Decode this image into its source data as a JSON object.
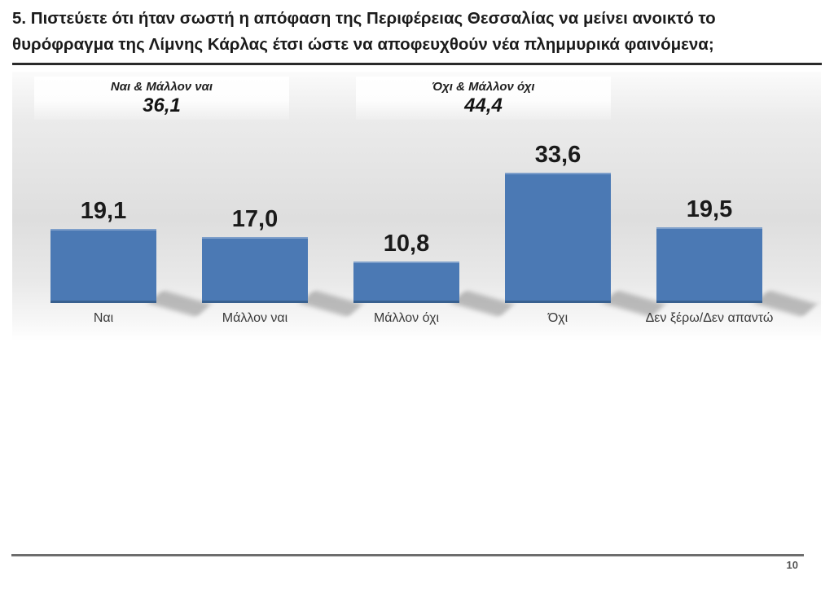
{
  "header": {
    "title": "5. Πιστεύετε ότι ήταν σωστή η απόφαση της Περιφέρειας Θεσσαλίας να μείνει ανοικτό το\nθυρόφραγμα της Λίμνης Κάρλας έτσι ώστε να αποφευχθούν νέα πλημμυρικά φαινόμενα;"
  },
  "chart_data": {
    "type": "bar",
    "categories": [
      "Ναι",
      "Μάλλον ναι",
      "Μάλλον όχι",
      "Όχι",
      "Δεν ξέρω/Δεν απαντώ"
    ],
    "values": [
      19.1,
      17.0,
      10.8,
      33.6,
      19.5
    ],
    "value_labels": [
      "19,1",
      "17,0",
      "10,8",
      "33,6",
      "19,5"
    ],
    "title": "",
    "xlabel": "",
    "ylabel": "",
    "ylim": [
      0,
      40
    ],
    "grid": false,
    "legend": false,
    "bar_color": "#4b79b4",
    "summary_boxes": [
      {
        "label": "Ναι & Μάλλον ναι",
        "value": "36,1"
      },
      {
        "label": "Όχι & Μάλλον όχι",
        "value": "44,4"
      }
    ]
  },
  "footer": {
    "page_number": "10"
  },
  "colors": {
    "bar": "#4b79b4",
    "bar_top_edge": "#7e9fca",
    "bar_bottom_edge": "#38608f",
    "title_text": "#1b1b1b",
    "category_text": "#3a3a3a",
    "footer_rule": "#6d6d6d",
    "page_number_text": "#565656"
  }
}
